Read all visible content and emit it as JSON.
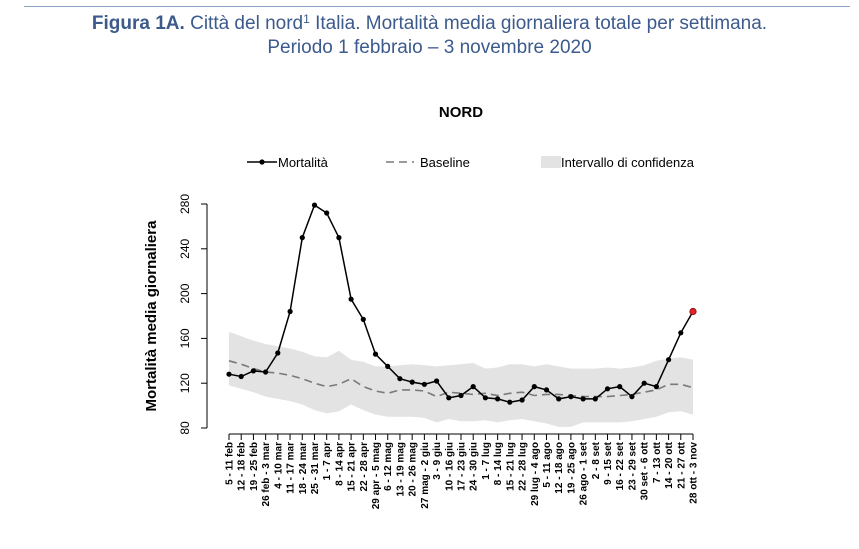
{
  "figure": {
    "label": "Figura 1A.",
    "title_main": " Città del nord",
    "footnote_mark": "1",
    "title_rest": " Italia. Mortalità media giornaliera totale per settimana.",
    "subtitle": "Periodo 1 febbraio – 3 novembre 2020"
  },
  "colors": {
    "title": "#3c5a8c",
    "band": "#e3e3e3",
    "baseline": "#7a7a7a",
    "line": "#000000",
    "last_point": "#e8202a"
  },
  "chart_data": {
    "type": "line",
    "title": "NORD",
    "xlabel": "",
    "ylabel": "Mortalità media giornaliera",
    "ylim": [
      80,
      280
    ],
    "yticks": [
      80,
      120,
      160,
      200,
      240,
      280
    ],
    "legend_position": "top",
    "legend": [
      {
        "label": "Mortalità",
        "kind": "line-marker"
      },
      {
        "label": "Baseline",
        "kind": "dashed"
      },
      {
        "label": "Intervallo di confidenza",
        "kind": "band"
      }
    ],
    "categories": [
      "5 - 11 feb",
      "12 - 18 feb",
      "19 - 25 feb",
      "26 feb - 3 mar",
      "4 - 10 mar",
      "11 - 17 mar",
      "18 - 24 mar",
      "25 - 31 mar",
      "1 - 7 apr",
      "8 - 14 apr",
      "15 - 21 apr",
      "22 - 28 apr",
      "29 apr - 5 mag",
      "6 - 12 mag",
      "13 - 19 mag",
      "20 - 26 mag",
      "27 mag - 2 giu",
      "3 - 9 giu",
      "10 - 16 giu",
      "17 - 23 giu",
      "24 - 30 giu",
      "1 - 7 lug",
      "8 - 14 lug",
      "15 - 21 lug",
      "22 - 28 lug",
      "29 lug - 4 ago",
      "5 - 11 ago",
      "12 - 18 ago",
      "19 - 25 ago",
      "26 ago - 1 set",
      "2 - 8 set",
      "9 - 15 set",
      "16 - 22 set",
      "23 - 29 set",
      "30 set - 6 ott",
      "7 - 13 ott",
      "14 - 20 ott",
      "21 - 27 ott",
      "28 ott - 3 nov"
    ],
    "series": [
      {
        "name": "Mortalità",
        "values": [
          128,
          126,
          131,
          130,
          147,
          184,
          250,
          279,
          272,
          250,
          195,
          177,
          146,
          135,
          124,
          121,
          119,
          122,
          107,
          109,
          117,
          107,
          106,
          103,
          105,
          117,
          114,
          106,
          108,
          106,
          106,
          115,
          117,
          108,
          120,
          117,
          141,
          165,
          184
        ]
      },
      {
        "name": "Baseline",
        "values": [
          140,
          137,
          133,
          130,
          129,
          127,
          124,
          120,
          117,
          119,
          124,
          117,
          113,
          111,
          114,
          114,
          113,
          108,
          112,
          111,
          110,
          111,
          109,
          111,
          112,
          109,
          110,
          110,
          109,
          108,
          108,
          108,
          109,
          110,
          112,
          114,
          119,
          119,
          116
        ]
      },
      {
        "name": "Intervallo di confidenza",
        "upper": [
          166,
          162,
          158,
          155,
          153,
          151,
          148,
          144,
          143,
          149,
          141,
          139,
          135,
          135,
          136,
          137,
          136,
          135,
          136,
          137,
          138,
          133,
          134,
          137,
          137,
          135,
          137,
          135,
          133,
          133,
          133,
          134,
          133,
          134,
          136,
          140,
          142,
          143,
          141
        ],
        "lower": [
          118,
          115,
          112,
          108,
          106,
          104,
          101,
          96,
          93,
          95,
          101,
          96,
          92,
          90,
          90,
          90,
          89,
          85,
          88,
          86,
          86,
          87,
          85,
          87,
          88,
          86,
          84,
          81,
          81,
          85,
          85,
          85,
          85,
          86,
          88,
          90,
          94,
          95,
          92
        ]
      }
    ]
  }
}
